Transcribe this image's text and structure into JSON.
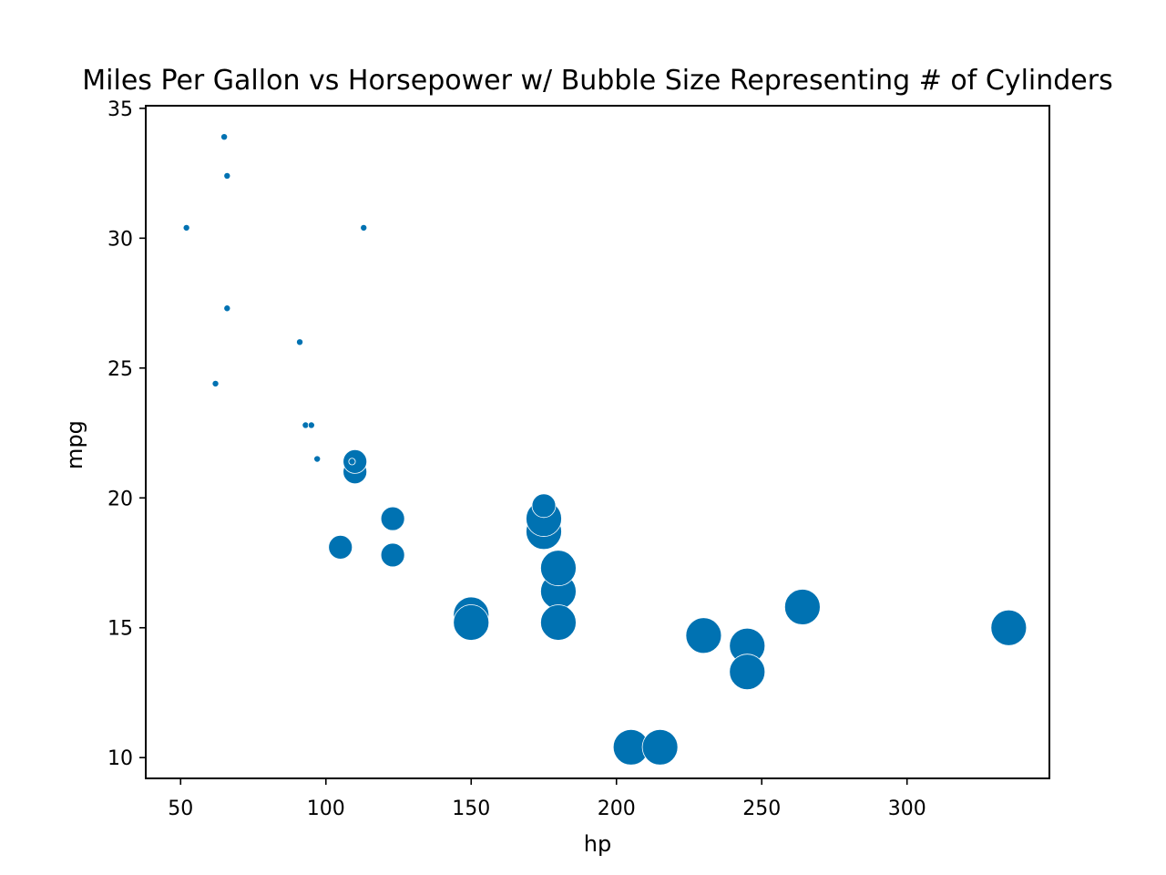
{
  "chart_data": {
    "type": "scatter",
    "title": "Miles Per Gallon vs Horsepower w/ Bubble Size Representing # of Cylinders",
    "xlabel": "hp",
    "ylabel": "mpg",
    "xlim": [
      38,
      349
    ],
    "ylim": [
      9.2,
      35.1
    ],
    "x_ticks": [
      50,
      100,
      150,
      200,
      250,
      300
    ],
    "y_ticks": [
      10,
      15,
      20,
      25,
      30,
      35
    ],
    "grid": false,
    "legend": "none",
    "size_encoding": "cyl",
    "color": "#0072b2",
    "points": [
      {
        "hp": 110,
        "mpg": 21.0,
        "cyl": 6
      },
      {
        "hp": 110,
        "mpg": 21.0,
        "cyl": 6
      },
      {
        "hp": 93,
        "mpg": 22.8,
        "cyl": 4
      },
      {
        "hp": 110,
        "mpg": 21.4,
        "cyl": 6
      },
      {
        "hp": 175,
        "mpg": 18.7,
        "cyl": 8
      },
      {
        "hp": 105,
        "mpg": 18.1,
        "cyl": 6
      },
      {
        "hp": 245,
        "mpg": 14.3,
        "cyl": 8
      },
      {
        "hp": 62,
        "mpg": 24.4,
        "cyl": 4
      },
      {
        "hp": 95,
        "mpg": 22.8,
        "cyl": 4
      },
      {
        "hp": 123,
        "mpg": 19.2,
        "cyl": 6
      },
      {
        "hp": 123,
        "mpg": 17.8,
        "cyl": 6
      },
      {
        "hp": 180,
        "mpg": 16.4,
        "cyl": 8
      },
      {
        "hp": 180,
        "mpg": 17.3,
        "cyl": 8
      },
      {
        "hp": 180,
        "mpg": 15.2,
        "cyl": 8
      },
      {
        "hp": 205,
        "mpg": 10.4,
        "cyl": 8
      },
      {
        "hp": 215,
        "mpg": 10.4,
        "cyl": 8
      },
      {
        "hp": 230,
        "mpg": 14.7,
        "cyl": 8
      },
      {
        "hp": 66,
        "mpg": 32.4,
        "cyl": 4
      },
      {
        "hp": 52,
        "mpg": 30.4,
        "cyl": 4
      },
      {
        "hp": 65,
        "mpg": 33.9,
        "cyl": 4
      },
      {
        "hp": 97,
        "mpg": 21.5,
        "cyl": 4
      },
      {
        "hp": 150,
        "mpg": 15.5,
        "cyl": 8
      },
      {
        "hp": 150,
        "mpg": 15.2,
        "cyl": 8
      },
      {
        "hp": 245,
        "mpg": 13.3,
        "cyl": 8
      },
      {
        "hp": 175,
        "mpg": 19.2,
        "cyl": 8
      },
      {
        "hp": 66,
        "mpg": 27.3,
        "cyl": 4
      },
      {
        "hp": 91,
        "mpg": 26.0,
        "cyl": 4
      },
      {
        "hp": 113,
        "mpg": 30.4,
        "cyl": 4
      },
      {
        "hp": 264,
        "mpg": 15.8,
        "cyl": 8
      },
      {
        "hp": 175,
        "mpg": 19.7,
        "cyl": 6
      },
      {
        "hp": 335,
        "mpg": 15.0,
        "cyl": 8
      },
      {
        "hp": 109,
        "mpg": 21.4,
        "cyl": 4
      }
    ]
  }
}
